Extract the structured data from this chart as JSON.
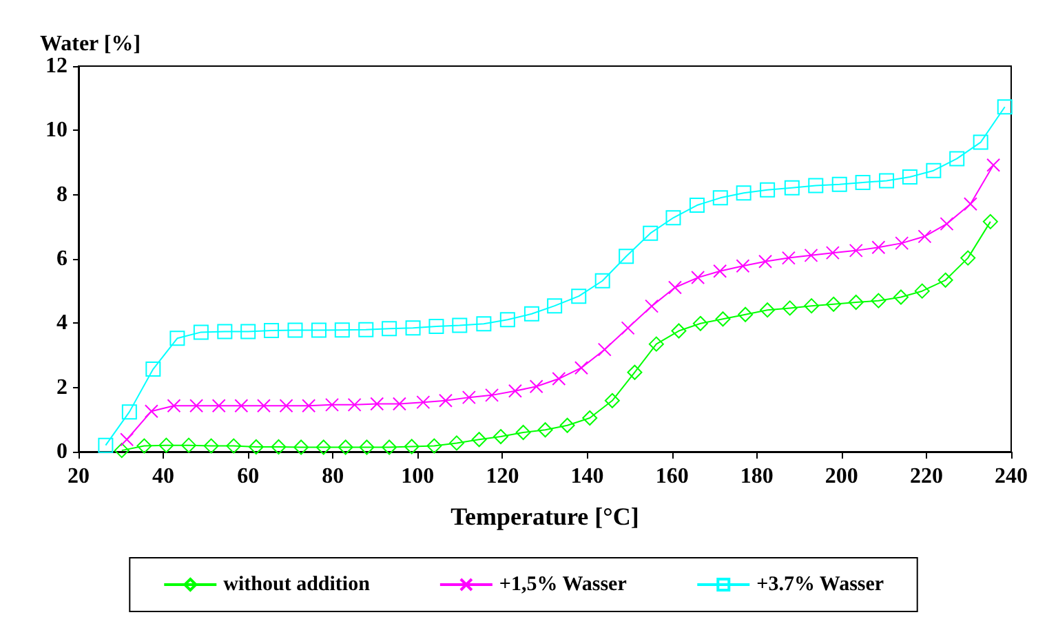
{
  "chart_data": {
    "type": "line",
    "xlabel": "Temperature [°C]",
    "ylabel": "Water [%]",
    "xlim": [
      20,
      240
    ],
    "xticks": [
      20,
      40,
      60,
      80,
      100,
      120,
      140,
      160,
      180,
      200,
      220,
      240
    ],
    "ylim": [
      0,
      12
    ],
    "yticks": [
      0,
      2,
      4,
      6,
      8,
      10,
      12
    ],
    "grid": false,
    "legend": "bottom",
    "series": [
      {
        "name": "without addition",
        "color": "#00ff00",
        "marker": "diamond",
        "x": [
          30.2,
          35.5,
          40.7,
          46,
          51.3,
          56.6,
          61.9,
          67.2,
          72.5,
          77.8,
          83,
          88,
          93.3,
          98.6,
          103.9,
          109.2,
          114.5,
          119.6,
          124.9,
          130.1,
          135.3,
          140.6,
          145.9,
          151.2,
          156.3,
          161.6,
          166.7,
          172,
          177.3,
          182.5,
          187.8,
          192.9,
          198.1,
          203.4,
          208.7,
          214,
          219,
          224.5,
          229.8,
          235.1
        ],
        "values": [
          0.04,
          0.18,
          0.2,
          0.2,
          0.18,
          0.18,
          0.15,
          0.15,
          0.14,
          0.14,
          0.14,
          0.14,
          0.14,
          0.16,
          0.18,
          0.27,
          0.38,
          0.47,
          0.6,
          0.68,
          0.82,
          1.05,
          1.59,
          2.47,
          3.35,
          3.76,
          3.99,
          4.13,
          4.27,
          4.41,
          4.47,
          4.54,
          4.59,
          4.65,
          4.7,
          4.81,
          5.0,
          5.34,
          6.03,
          7.16
        ]
      },
      {
        "name": "+1,5% Wasser",
        "color": "#ff00ff",
        "marker": "cross",
        "x": [
          31.4,
          37.2,
          42.5,
          47.8,
          53.1,
          58.4,
          63.7,
          69,
          74.3,
          79.8,
          85.1,
          90.4,
          95.7,
          101.3,
          106.6,
          112.1,
          117.5,
          123,
          128,
          133.3,
          138.6,
          144.1,
          149.6,
          155.2,
          160.7,
          166.1,
          171.3,
          176.7,
          182,
          187.5,
          192.8,
          197.9,
          203.4,
          208.7,
          214.2,
          219.6,
          224.8,
          230.4,
          235.8
        ],
        "values": [
          0.38,
          1.26,
          1.43,
          1.43,
          1.43,
          1.43,
          1.43,
          1.43,
          1.43,
          1.46,
          1.46,
          1.49,
          1.49,
          1.54,
          1.59,
          1.69,
          1.76,
          1.89,
          2.03,
          2.27,
          2.61,
          3.18,
          3.85,
          4.53,
          5.11,
          5.42,
          5.62,
          5.78,
          5.92,
          6.03,
          6.11,
          6.19,
          6.26,
          6.36,
          6.49,
          6.7,
          7.09,
          7.71,
          8.92
        ]
      },
      {
        "name": "+3.7% Wasser",
        "color": "#00ffff",
        "marker": "square",
        "x": [
          26.4,
          32,
          37.6,
          43.3,
          48.9,
          54.5,
          60,
          65.5,
          71.1,
          76.7,
          82.2,
          87.8,
          93.3,
          98.9,
          104.4,
          109.9,
          115.6,
          121.2,
          126.9,
          132.3,
          138,
          143.6,
          149.2,
          154.9,
          160.3,
          165.9,
          171.4,
          176.9,
          182.5,
          188.3,
          193.9,
          199.5,
          205,
          210.6,
          216.1,
          221.7,
          227.2,
          232.8,
          238.5
        ],
        "values": [
          0.2,
          1.24,
          2.57,
          3.53,
          3.72,
          3.74,
          3.74,
          3.77,
          3.78,
          3.78,
          3.79,
          3.8,
          3.83,
          3.85,
          3.9,
          3.93,
          3.98,
          4.11,
          4.29,
          4.54,
          4.84,
          5.32,
          6.08,
          6.8,
          7.28,
          7.67,
          7.9,
          8.05,
          8.15,
          8.21,
          8.28,
          8.32,
          8.38,
          8.43,
          8.55,
          8.75,
          9.12,
          9.63,
          10.73
        ]
      }
    ]
  }
}
